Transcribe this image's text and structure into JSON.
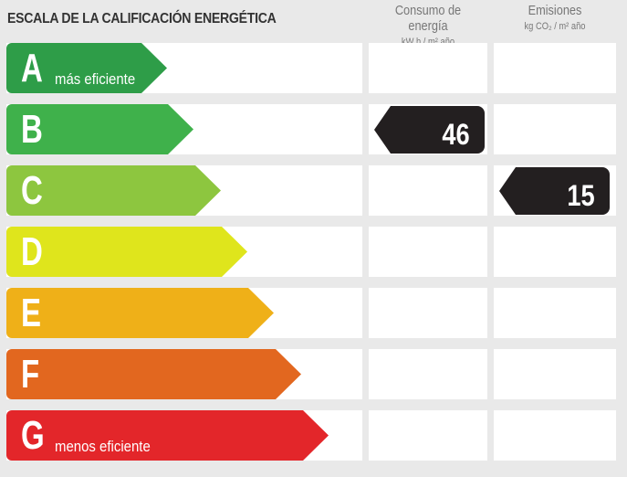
{
  "title": "ESCALA DE LA CALIFICACIÓN ENERGÉTICA",
  "columns": [
    {
      "title": "Consumo de energía",
      "unit": "kW h / m² año"
    },
    {
      "title": "Emisiones",
      "unit": "kg CO₂ / m² año"
    }
  ],
  "ratings": [
    {
      "letter": "A",
      "label": "más eficiente",
      "color": "#2e9d48"
    },
    {
      "letter": "B",
      "label": "",
      "color": "#3fb14b"
    },
    {
      "letter": "C",
      "label": "",
      "color": "#8dc63f"
    },
    {
      "letter": "D",
      "label": "",
      "color": "#dfe51c"
    },
    {
      "letter": "E",
      "label": "",
      "color": "#efb018"
    },
    {
      "letter": "F",
      "label": "",
      "color": "#e2671f"
    },
    {
      "letter": "G",
      "label": "menos eficiente",
      "color": "#e3262a"
    }
  ],
  "consumption": {
    "rating": "B",
    "value": "46"
  },
  "emissions": {
    "rating": "C",
    "value": "15"
  }
}
